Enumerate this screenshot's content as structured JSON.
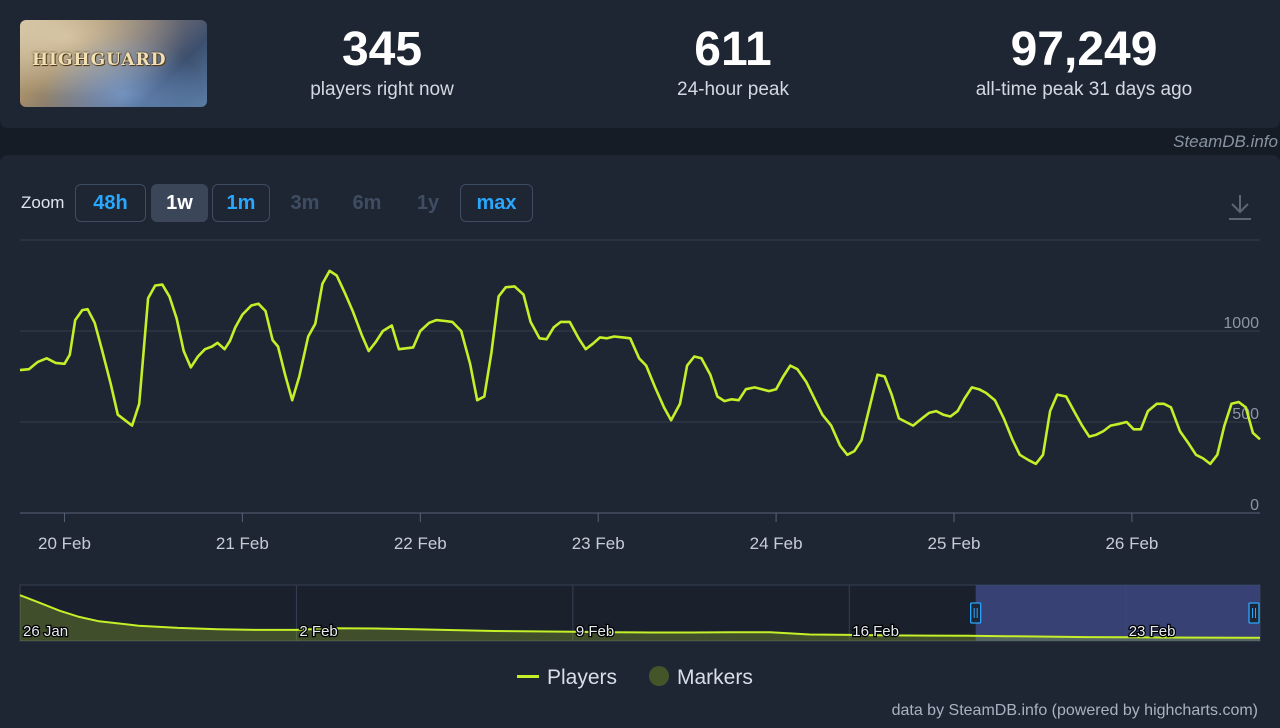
{
  "header": {
    "game_image_text": "HIGHGUARD",
    "stats": [
      {
        "value": "345",
        "label": "players right now"
      },
      {
        "value": "611",
        "label": "24-hour peak"
      },
      {
        "value": "97,249",
        "label": "all-time peak 31 days ago"
      }
    ]
  },
  "watermark": "SteamDB.info",
  "zoom": {
    "label": "Zoom",
    "buttons": [
      {
        "label": "48h",
        "state": "outline"
      },
      {
        "label": "1w",
        "state": "active"
      },
      {
        "label": "1m",
        "state": "outline"
      },
      {
        "label": "3m",
        "state": "disabled"
      },
      {
        "label": "6m",
        "state": "disabled"
      },
      {
        "label": "1y",
        "state": "disabled"
      },
      {
        "label": "max",
        "state": "outline"
      }
    ],
    "download_icon": "download-icon"
  },
  "legend": {
    "players": "Players",
    "markers": "Markers"
  },
  "credits": "data by SteamDB.info (powered by highcharts.com)",
  "colors": {
    "series": "#c3f029",
    "accent": "#29a7ff",
    "background": "#1f2633",
    "navigator_window": "#3c4680"
  },
  "chart_data": [
    {
      "type": "line",
      "series": [
        {
          "name": "Players"
        }
      ],
      "x_labels": [
        "20 Feb",
        "21 Feb",
        "22 Feb",
        "23 Feb",
        "24 Feb",
        "25 Feb",
        "26 Feb"
      ],
      "y_ticks": [
        "1000",
        "500",
        "0"
      ],
      "ylim": [
        0,
        1500
      ],
      "xlim": [
        19.75,
        26.72
      ],
      "points": [
        [
          19.75,
          785
        ],
        [
          19.8,
          790
        ],
        [
          19.85,
          830
        ],
        [
          19.9,
          850
        ],
        [
          19.95,
          825
        ],
        [
          20.0,
          820
        ],
        [
          20.03,
          870
        ],
        [
          20.06,
          1060
        ],
        [
          20.1,
          1115
        ],
        [
          20.13,
          1120
        ],
        [
          20.17,
          1045
        ],
        [
          20.21,
          900
        ],
        [
          20.26,
          710
        ],
        [
          20.3,
          540
        ],
        [
          20.34,
          510
        ],
        [
          20.38,
          480
        ],
        [
          20.42,
          600
        ],
        [
          20.47,
          1180
        ],
        [
          20.51,
          1250
        ],
        [
          20.55,
          1255
        ],
        [
          20.59,
          1190
        ],
        [
          20.63,
          1070
        ],
        [
          20.67,
          890
        ],
        [
          20.71,
          800
        ],
        [
          20.75,
          860
        ],
        [
          20.79,
          900
        ],
        [
          20.83,
          915
        ],
        [
          20.86,
          935
        ],
        [
          20.9,
          900
        ],
        [
          20.93,
          945
        ],
        [
          20.96,
          1020
        ],
        [
          21.0,
          1090
        ],
        [
          21.05,
          1140
        ],
        [
          21.09,
          1150
        ],
        [
          21.13,
          1110
        ],
        [
          21.17,
          950
        ],
        [
          21.2,
          915
        ],
        [
          21.24,
          760
        ],
        [
          21.28,
          620
        ],
        [
          21.32,
          750
        ],
        [
          21.37,
          970
        ],
        [
          21.41,
          1040
        ],
        [
          21.45,
          1260
        ],
        [
          21.49,
          1330
        ],
        [
          21.53,
          1305
        ],
        [
          21.58,
          1200
        ],
        [
          21.62,
          1110
        ],
        [
          21.67,
          980
        ],
        [
          21.71,
          890
        ],
        [
          21.75,
          940
        ],
        [
          21.79,
          1000
        ],
        [
          21.84,
          1030
        ],
        [
          21.88,
          900
        ],
        [
          21.92,
          905
        ],
        [
          21.96,
          910
        ],
        [
          22.0,
          1000
        ],
        [
          22.05,
          1045
        ],
        [
          22.09,
          1060
        ],
        [
          22.14,
          1055
        ],
        [
          22.18,
          1050
        ],
        [
          22.23,
          1000
        ],
        [
          22.28,
          820
        ],
        [
          22.32,
          620
        ],
        [
          22.36,
          640
        ],
        [
          22.4,
          880
        ],
        [
          22.44,
          1190
        ],
        [
          22.48,
          1240
        ],
        [
          22.53,
          1245
        ],
        [
          22.58,
          1200
        ],
        [
          22.62,
          1050
        ],
        [
          22.67,
          960
        ],
        [
          22.71,
          955
        ],
        [
          22.75,
          1020
        ],
        [
          22.79,
          1050
        ],
        [
          22.84,
          1050
        ],
        [
          22.89,
          960
        ],
        [
          22.93,
          900
        ],
        [
          22.97,
          930
        ],
        [
          23.01,
          965
        ],
        [
          23.05,
          960
        ],
        [
          23.09,
          970
        ],
        [
          23.14,
          965
        ],
        [
          23.18,
          960
        ],
        [
          23.23,
          850
        ],
        [
          23.27,
          810
        ],
        [
          23.32,
          690
        ],
        [
          23.37,
          580
        ],
        [
          23.41,
          510
        ],
        [
          23.46,
          600
        ],
        [
          23.5,
          810
        ],
        [
          23.54,
          860
        ],
        [
          23.58,
          850
        ],
        [
          23.63,
          760
        ],
        [
          23.67,
          640
        ],
        [
          23.71,
          615
        ],
        [
          23.75,
          625
        ],
        [
          23.79,
          620
        ],
        [
          23.83,
          680
        ],
        [
          23.88,
          690
        ],
        [
          23.92,
          680
        ],
        [
          23.96,
          670
        ],
        [
          24.0,
          680
        ],
        [
          24.04,
          750
        ],
        [
          24.08,
          810
        ],
        [
          24.12,
          790
        ],
        [
          24.17,
          720
        ],
        [
          24.22,
          620
        ],
        [
          24.26,
          540
        ],
        [
          24.31,
          480
        ],
        [
          24.36,
          370
        ],
        [
          24.4,
          320
        ],
        [
          24.44,
          340
        ],
        [
          24.48,
          400
        ],
        [
          24.53,
          600
        ],
        [
          24.57,
          760
        ],
        [
          24.61,
          750
        ],
        [
          24.65,
          650
        ],
        [
          24.69,
          520
        ],
        [
          24.73,
          500
        ],
        [
          24.77,
          480
        ],
        [
          24.82,
          520
        ],
        [
          24.86,
          550
        ],
        [
          24.9,
          560
        ],
        [
          24.94,
          540
        ],
        [
          24.98,
          530
        ],
        [
          25.02,
          560
        ],
        [
          25.06,
          630
        ],
        [
          25.1,
          690
        ],
        [
          25.14,
          680
        ],
        [
          25.18,
          660
        ],
        [
          25.23,
          620
        ],
        [
          25.28,
          520
        ],
        [
          25.33,
          400
        ],
        [
          25.37,
          320
        ],
        [
          25.42,
          290
        ],
        [
          25.46,
          270
        ],
        [
          25.5,
          320
        ],
        [
          25.54,
          560
        ],
        [
          25.58,
          650
        ],
        [
          25.63,
          640
        ],
        [
          25.68,
          550
        ],
        [
          25.72,
          480
        ],
        [
          25.76,
          420
        ],
        [
          25.8,
          430
        ],
        [
          25.84,
          450
        ],
        [
          25.88,
          480
        ],
        [
          25.93,
          490
        ],
        [
          25.97,
          500
        ],
        [
          26.01,
          460
        ],
        [
          26.05,
          460
        ],
        [
          26.09,
          560
        ],
        [
          26.14,
          600
        ],
        [
          26.18,
          600
        ],
        [
          26.22,
          580
        ],
        [
          26.27,
          450
        ],
        [
          26.32,
          380
        ],
        [
          26.36,
          320
        ],
        [
          26.4,
          300
        ],
        [
          26.44,
          270
        ],
        [
          26.48,
          320
        ],
        [
          26.52,
          480
        ],
        [
          26.56,
          600
        ],
        [
          26.6,
          610
        ],
        [
          26.64,
          580
        ],
        [
          26.68,
          440
        ],
        [
          26.72,
          405
        ]
      ]
    },
    {
      "type": "area",
      "role": "navigator",
      "x_labels": [
        "26 Jan",
        "2 Feb",
        "9 Feb",
        "16 Feb",
        "23 Feb"
      ],
      "xlim": [
        0,
        31.4
      ],
      "ylim": [
        0,
        100000
      ],
      "selected_range": [
        "19 Feb",
        "26 Feb"
      ],
      "points": [
        [
          0,
          97249
        ],
        [
          0.5,
          80000
        ],
        [
          1,
          62000
        ],
        [
          1.5,
          48000
        ],
        [
          2,
          38000
        ],
        [
          3,
          28000
        ],
        [
          4,
          23000
        ],
        [
          5,
          20000
        ],
        [
          6,
          18500
        ],
        [
          7,
          18500
        ],
        [
          8,
          22000
        ],
        [
          9,
          21500
        ],
        [
          10,
          20000
        ],
        [
          11,
          18000
        ],
        [
          12,
          16000
        ],
        [
          13,
          15000
        ],
        [
          14,
          14000
        ],
        [
          15,
          13000
        ],
        [
          16,
          12500
        ],
        [
          17,
          12500
        ],
        [
          18,
          13000
        ],
        [
          19,
          13000
        ],
        [
          20,
          8000
        ],
        [
          21,
          7000
        ],
        [
          22,
          6000
        ],
        [
          23,
          5500
        ],
        [
          24,
          5000
        ],
        [
          25,
          4000
        ],
        [
          26,
          3200
        ],
        [
          27,
          2000
        ],
        [
          28,
          1500
        ],
        [
          29,
          1200
        ],
        [
          30,
          900
        ],
        [
          31,
          700
        ],
        [
          31.4,
          600
        ]
      ]
    }
  ]
}
